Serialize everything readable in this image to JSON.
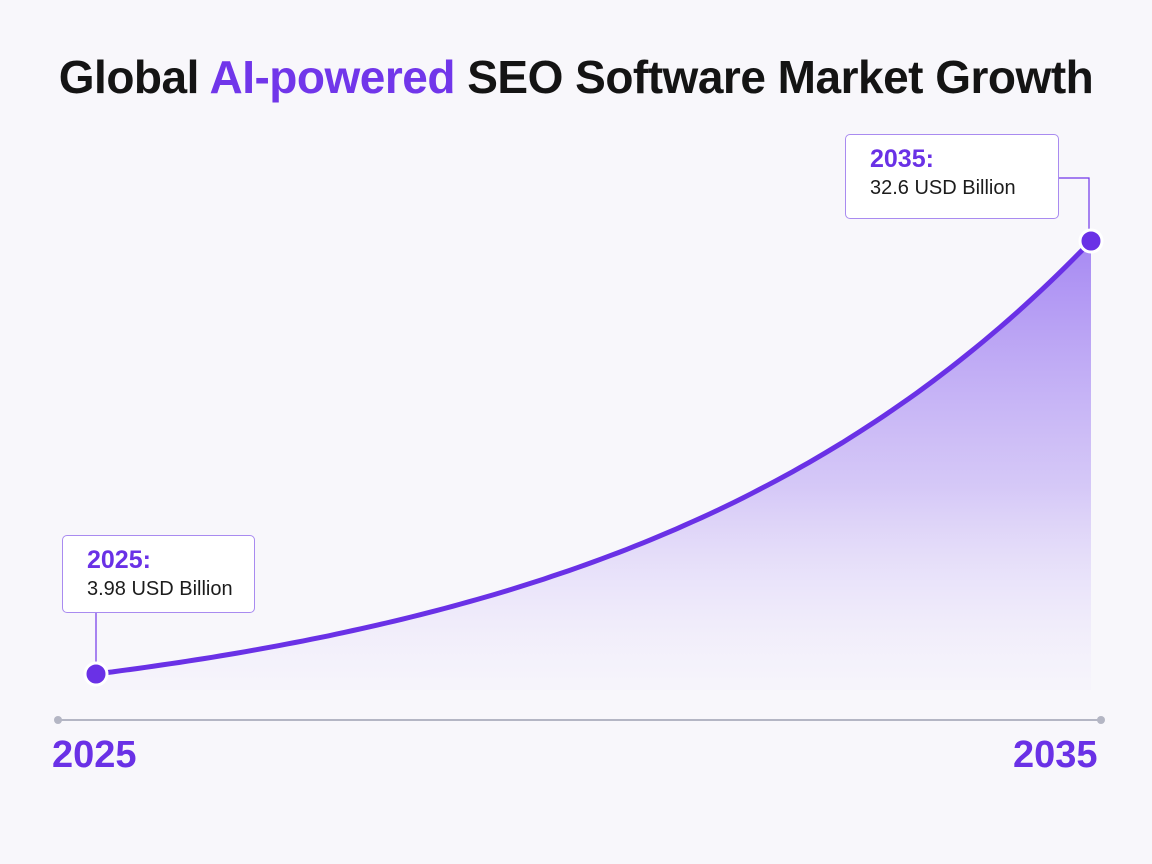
{
  "title": {
    "prefix": "Global ",
    "accent": "AI-powered",
    "suffix": " SEO Software Market Growth"
  },
  "chart_data": {
    "type": "area",
    "x": [
      2025,
      2035
    ],
    "unit": "USD Billion",
    "series": [
      {
        "values": [
          3.98,
          32.6
        ]
      }
    ],
    "annotations": [
      {
        "year_label": "2025:",
        "value_label": "3.98 USD Billion"
      },
      {
        "year_label": "2035:",
        "value_label": "32.6 USD Billion"
      }
    ],
    "x_tick_labels": [
      "2025",
      "2035"
    ],
    "grid": false,
    "legend": "none"
  },
  "colors": {
    "accent": "#7136ea",
    "line": "#6a31e6",
    "fill_top": "#a283f2",
    "axis": "#b4b6c4",
    "background": "#f8f7fb"
  }
}
